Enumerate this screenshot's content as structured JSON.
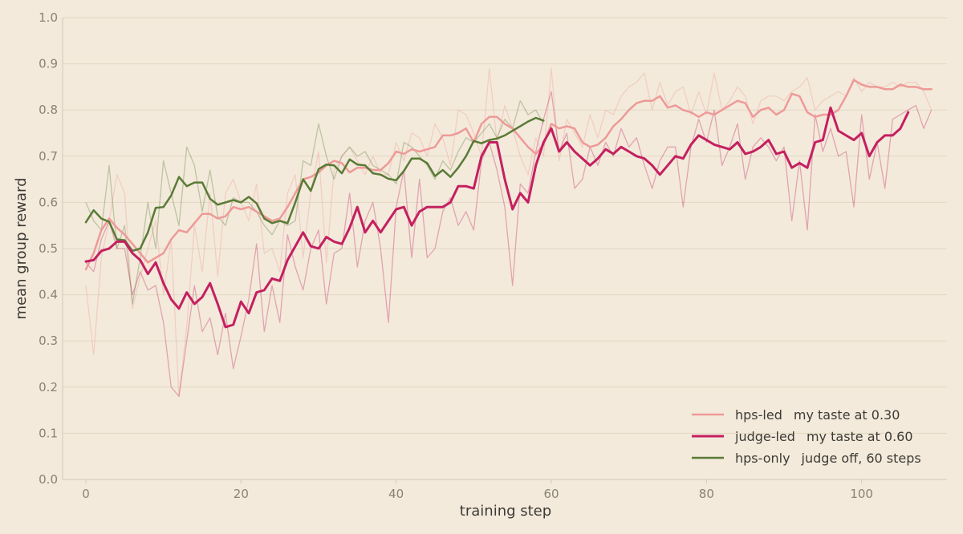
{
  "chart_data": {
    "type": "line",
    "title": "",
    "xlabel": "training step",
    "ylabel": "mean group reward",
    "xlim": [
      -3,
      111
    ],
    "ylim": [
      0,
      1.0
    ],
    "x_ticks": [
      0,
      20,
      40,
      60,
      80,
      100
    ],
    "y_ticks": [
      0.0,
      0.1,
      0.2,
      0.3,
      0.4,
      0.5,
      0.6,
      0.7,
      0.8,
      0.9,
      1.0
    ],
    "x_tick_labels": [
      "0",
      "20",
      "40",
      "60",
      "80",
      "100"
    ],
    "y_tick_labels": [
      "0.0",
      "0.1",
      "0.2",
      "0.3",
      "0.4",
      "0.5",
      "0.6",
      "0.7",
      "0.8",
      "0.9",
      "1.0"
    ],
    "grid": "horizontal",
    "legend_position": "bottom-right",
    "series": [
      {
        "name": "hps-led",
        "legend_note": "my taste at 0.30",
        "color": "#ee9a98",
        "smoothed": [
          0.455,
          0.49,
          0.54,
          0.565,
          0.545,
          0.53,
          0.51,
          0.49,
          0.47,
          0.48,
          0.49,
          0.52,
          0.54,
          0.535,
          0.555,
          0.575,
          0.575,
          0.565,
          0.57,
          0.59,
          0.585,
          0.59,
          0.58,
          0.57,
          0.56,
          0.565,
          0.59,
          0.62,
          0.65,
          0.655,
          0.665,
          0.68,
          0.69,
          0.685,
          0.665,
          0.675,
          0.675,
          0.67,
          0.67,
          0.685,
          0.71,
          0.705,
          0.715,
          0.71,
          0.715,
          0.72,
          0.745,
          0.745,
          0.75,
          0.76,
          0.73,
          0.77,
          0.785,
          0.785,
          0.77,
          0.76,
          0.74,
          0.72,
          0.705,
          0.725,
          0.77,
          0.76,
          0.765,
          0.76,
          0.73,
          0.72,
          0.725,
          0.74,
          0.765,
          0.78,
          0.8,
          0.815,
          0.82,
          0.82,
          0.83,
          0.805,
          0.81,
          0.8,
          0.795,
          0.785,
          0.795,
          0.79,
          0.8,
          0.81,
          0.82,
          0.815,
          0.785,
          0.8,
          0.805,
          0.79,
          0.8,
          0.835,
          0.83,
          0.795,
          0.785,
          0.79,
          0.79,
          0.8,
          0.83,
          0.865,
          0.855,
          0.85,
          0.85,
          0.845,
          0.845,
          0.855,
          0.85,
          0.85,
          0.845,
          0.845
        ],
        "raw": [
          0.42,
          0.27,
          0.48,
          0.56,
          0.66,
          0.62,
          0.37,
          0.44,
          0.5,
          0.56,
          0.4,
          0.52,
          0.18,
          0.33,
          0.55,
          0.45,
          0.62,
          0.44,
          0.62,
          0.65,
          0.6,
          0.56,
          0.64,
          0.49,
          0.5,
          0.45,
          0.62,
          0.66,
          0.48,
          0.62,
          0.71,
          0.47,
          0.67,
          0.7,
          0.72,
          0.69,
          0.66,
          0.7,
          0.66,
          0.66,
          0.73,
          0.69,
          0.75,
          0.74,
          0.7,
          0.77,
          0.74,
          0.68,
          0.8,
          0.79,
          0.75,
          0.7,
          0.89,
          0.73,
          0.81,
          0.76,
          0.7,
          0.66,
          0.74,
          0.7,
          0.89,
          0.69,
          0.78,
          0.75,
          0.72,
          0.79,
          0.74,
          0.8,
          0.79,
          0.83,
          0.85,
          0.86,
          0.88,
          0.8,
          0.86,
          0.81,
          0.84,
          0.85,
          0.79,
          0.84,
          0.79,
          0.88,
          0.8,
          0.82,
          0.85,
          0.83,
          0.77,
          0.82,
          0.83,
          0.83,
          0.82,
          0.84,
          0.85,
          0.87,
          0.8,
          0.82,
          0.83,
          0.84,
          0.83,
          0.87,
          0.84,
          0.86,
          0.85,
          0.85,
          0.86,
          0.85,
          0.86,
          0.86,
          0.84,
          0.8
        ]
      },
      {
        "name": "judge-led",
        "legend_note": "my taste at 0.60",
        "color": "#c42060",
        "smoothed": [
          0.472,
          0.475,
          0.495,
          0.5,
          0.515,
          0.515,
          0.49,
          0.475,
          0.445,
          0.47,
          0.425,
          0.39,
          0.37,
          0.405,
          0.38,
          0.395,
          0.425,
          0.38,
          0.33,
          0.335,
          0.385,
          0.36,
          0.405,
          0.41,
          0.435,
          0.43,
          0.475,
          0.505,
          0.535,
          0.505,
          0.5,
          0.525,
          0.515,
          0.51,
          0.545,
          0.59,
          0.535,
          0.56,
          0.535,
          0.56,
          0.585,
          0.59,
          0.55,
          0.58,
          0.59,
          0.59,
          0.59,
          0.6,
          0.635,
          0.635,
          0.63,
          0.7,
          0.73,
          0.73,
          0.65,
          0.585,
          0.62,
          0.6,
          0.68,
          0.73,
          0.76,
          0.71,
          0.73,
          0.71,
          0.695,
          0.68,
          0.695,
          0.715,
          0.705,
          0.72,
          0.71,
          0.7,
          0.695,
          0.68,
          0.66,
          0.68,
          0.7,
          0.695,
          0.725,
          0.745,
          0.735,
          0.725,
          0.72,
          0.715,
          0.73,
          0.705,
          0.71,
          0.72,
          0.735,
          0.705,
          0.71,
          0.675,
          0.685,
          0.675,
          0.73,
          0.735,
          0.805,
          0.755,
          0.745,
          0.735,
          0.75,
          0.7,
          0.73,
          0.745,
          0.745,
          0.76,
          0.795
        ],
        "raw": [
          0.47,
          0.45,
          0.52,
          0.56,
          0.5,
          0.5,
          0.4,
          0.45,
          0.41,
          0.42,
          0.34,
          0.2,
          0.18,
          0.3,
          0.42,
          0.32,
          0.35,
          0.27,
          0.36,
          0.24,
          0.31,
          0.39,
          0.51,
          0.32,
          0.42,
          0.34,
          0.53,
          0.46,
          0.41,
          0.5,
          0.54,
          0.38,
          0.49,
          0.5,
          0.62,
          0.46,
          0.56,
          0.6,
          0.5,
          0.34,
          0.59,
          0.67,
          0.48,
          0.65,
          0.48,
          0.5,
          0.58,
          0.61,
          0.55,
          0.58,
          0.54,
          0.69,
          0.73,
          0.67,
          0.59,
          0.42,
          0.64,
          0.62,
          0.71,
          0.78,
          0.84,
          0.71,
          0.75,
          0.63,
          0.65,
          0.72,
          0.68,
          0.73,
          0.7,
          0.76,
          0.72,
          0.74,
          0.68,
          0.63,
          0.69,
          0.72,
          0.72,
          0.59,
          0.72,
          0.78,
          0.73,
          0.8,
          0.68,
          0.72,
          0.77,
          0.65,
          0.72,
          0.74,
          0.72,
          0.69,
          0.72,
          0.56,
          0.69,
          0.54,
          0.79,
          0.71,
          0.76,
          0.7,
          0.71,
          0.59,
          0.79,
          0.65,
          0.73,
          0.63,
          0.78,
          0.79,
          0.8,
          0.81,
          0.76,
          0.8
        ]
      },
      {
        "name": "hps-only",
        "legend_note": "judge off, 60 steps",
        "color": "#5a7a36",
        "smoothed": [
          0.557,
          0.583,
          0.565,
          0.558,
          0.52,
          0.518,
          0.495,
          0.5,
          0.535,
          0.588,
          0.59,
          0.615,
          0.655,
          0.635,
          0.643,
          0.643,
          0.608,
          0.595,
          0.6,
          0.605,
          0.6,
          0.612,
          0.598,
          0.565,
          0.555,
          0.56,
          0.555,
          0.6,
          0.65,
          0.625,
          0.672,
          0.682,
          0.68,
          0.663,
          0.693,
          0.682,
          0.68,
          0.663,
          0.66,
          0.651,
          0.648,
          0.668,
          0.695,
          0.695,
          0.685,
          0.657,
          0.67,
          0.655,
          0.675,
          0.7,
          0.733,
          0.728,
          0.735,
          0.738,
          0.745,
          0.755,
          0.765,
          0.775,
          0.783,
          0.777
        ],
        "raw": [
          0.6,
          0.56,
          0.54,
          0.68,
          0.5,
          0.55,
          0.38,
          0.48,
          0.6,
          0.5,
          0.69,
          0.62,
          0.55,
          0.72,
          0.68,
          0.58,
          0.67,
          0.57,
          0.55,
          0.61,
          0.6,
          0.6,
          0.58,
          0.55,
          0.53,
          0.56,
          0.55,
          0.56,
          0.69,
          0.68,
          0.77,
          0.7,
          0.65,
          0.7,
          0.72,
          0.7,
          0.71,
          0.68,
          0.67,
          0.66,
          0.64,
          0.73,
          0.72,
          0.7,
          0.68,
          0.65,
          0.69,
          0.67,
          0.71,
          0.74,
          0.73,
          0.75,
          0.77,
          0.74,
          0.78,
          0.76,
          0.82,
          0.79,
          0.8,
          0.77
        ]
      }
    ]
  }
}
